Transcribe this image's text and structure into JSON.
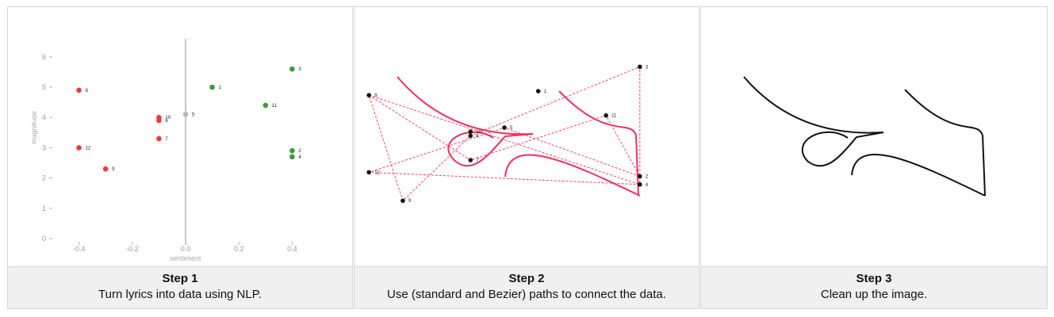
{
  "panels": [
    {
      "title": "Step 1",
      "description": "Turn lyrics into data using NLP."
    },
    {
      "title": "Step 2",
      "description": "Use (standard and Bezier) paths to connect the data."
    },
    {
      "title": "Step 3",
      "description": "Clean up the image."
    }
  ],
  "colors": {
    "positive": "#3a9c3a",
    "negative": "#f03a3a",
    "neutral": "#b4b4b4",
    "path": "#f0305a",
    "ink": "#111111"
  },
  "chart_data": {
    "type": "scatter",
    "xlabel": "sentiment",
    "ylabel": "magnitude",
    "xlim": [
      -0.5,
      0.45
    ],
    "ylim": [
      0,
      6.6
    ],
    "xticks": [
      "-0.4",
      "-0.2",
      "0.0",
      "0.2",
      "0.4"
    ],
    "yticks": [
      "0",
      "1",
      "2",
      "3",
      "4",
      "5",
      "6"
    ],
    "grid": false,
    "points": [
      {
        "label": "1",
        "x": 0.1,
        "y": 5.0
      },
      {
        "label": "2",
        "x": 0.4,
        "y": 2.9
      },
      {
        "label": "3",
        "x": 0.4,
        "y": 5.6
      },
      {
        "label": "4",
        "x": 0.4,
        "y": 2.7
      },
      {
        "label": "5",
        "x": 0.0,
        "y": 4.1
      },
      {
        "label": "6",
        "x": -0.1,
        "y": 3.9
      },
      {
        "label": "7",
        "x": -0.1,
        "y": 3.3
      },
      {
        "label": "8",
        "x": -0.4,
        "y": 4.9
      },
      {
        "label": "9",
        "x": -0.3,
        "y": 2.3
      },
      {
        "label": "10",
        "x": -0.1,
        "y": 4.0
      },
      {
        "label": "11",
        "x": 0.3,
        "y": 4.4
      },
      {
        "label": "12",
        "x": -0.4,
        "y": 3.0
      }
    ]
  }
}
